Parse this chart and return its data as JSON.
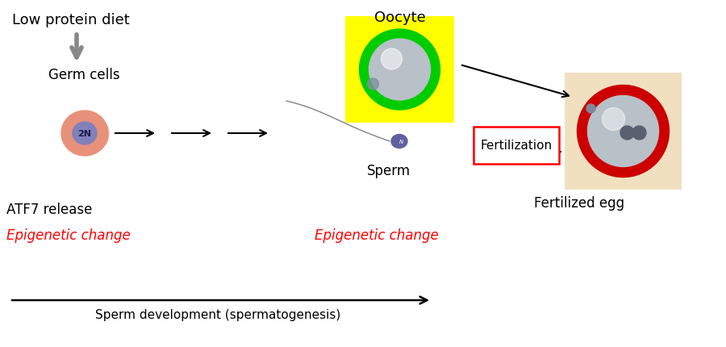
{
  "bg_color": "#ffffff",
  "text_low_protein": "Low protein diet",
  "text_germ_cells": "Germ cells",
  "text_atf7": "ATF7 release",
  "text_epigenetic1": "Epigenetic change",
  "text_epigenetic2": "Epigenetic change",
  "text_oocyte": "Oocyte",
  "text_sperm": "Sperm",
  "text_fertilization": "Fertilization",
  "text_fertilized_egg": "Fertilized egg",
  "text_sperm_dev": "Sperm development (spermatogenesis)",
  "text_2N": "2N",
  "text_N": "N",
  "red_color": "#ff0000",
  "black_color": "#000000",
  "gray_color": "#888888",
  "germ_cell_outer": "#e8917a",
  "germ_cell_inner": "#8080bb",
  "oocyte_bg": "#ffff00",
  "oocyte_ring": "#00cc00",
  "oocyte_sphere": "#b8c0c8",
  "fertilized_bg": "#f0e0c0",
  "fertilized_ring": "#cc0000",
  "fertilized_sphere": "#b8c0c8",
  "sperm_head": "#6060a0",
  "sperm_tail_color": "#808090",
  "xlim": [
    0,
    9
  ],
  "ylim": [
    0,
    4.31
  ]
}
